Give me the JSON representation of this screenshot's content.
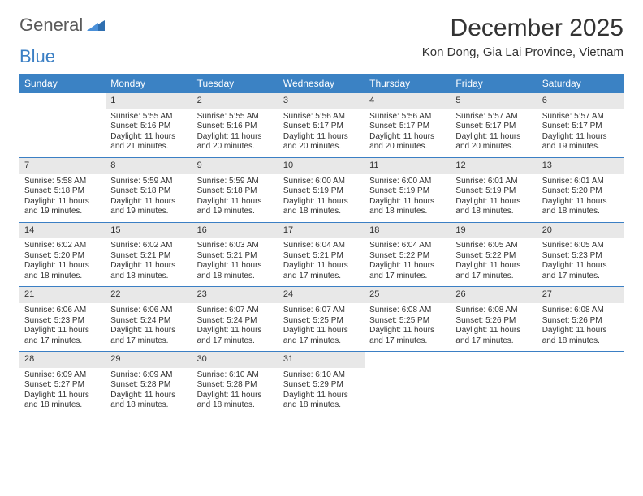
{
  "logo": {
    "text1": "General",
    "text2": "Blue"
  },
  "title": "December 2025",
  "location": "Kon Dong, Gia Lai Province, Vietnam",
  "colors": {
    "header_bg": "#3b82c4",
    "header_text": "#ffffff",
    "daynum_bg": "#e8e8e8",
    "week_border": "#3b7fc4",
    "text": "#333333",
    "logo_gray": "#5a5a5a",
    "logo_blue": "#3b7fc4"
  },
  "day_names": [
    "Sunday",
    "Monday",
    "Tuesday",
    "Wednesday",
    "Thursday",
    "Friday",
    "Saturday"
  ],
  "weeks": [
    [
      null,
      {
        "n": "1",
        "sr": "Sunrise: 5:55 AM",
        "ss": "Sunset: 5:16 PM",
        "dl": "Daylight: 11 hours and 21 minutes."
      },
      {
        "n": "2",
        "sr": "Sunrise: 5:55 AM",
        "ss": "Sunset: 5:16 PM",
        "dl": "Daylight: 11 hours and 20 minutes."
      },
      {
        "n": "3",
        "sr": "Sunrise: 5:56 AM",
        "ss": "Sunset: 5:17 PM",
        "dl": "Daylight: 11 hours and 20 minutes."
      },
      {
        "n": "4",
        "sr": "Sunrise: 5:56 AM",
        "ss": "Sunset: 5:17 PM",
        "dl": "Daylight: 11 hours and 20 minutes."
      },
      {
        "n": "5",
        "sr": "Sunrise: 5:57 AM",
        "ss": "Sunset: 5:17 PM",
        "dl": "Daylight: 11 hours and 20 minutes."
      },
      {
        "n": "6",
        "sr": "Sunrise: 5:57 AM",
        "ss": "Sunset: 5:17 PM",
        "dl": "Daylight: 11 hours and 19 minutes."
      }
    ],
    [
      {
        "n": "7",
        "sr": "Sunrise: 5:58 AM",
        "ss": "Sunset: 5:18 PM",
        "dl": "Daylight: 11 hours and 19 minutes."
      },
      {
        "n": "8",
        "sr": "Sunrise: 5:59 AM",
        "ss": "Sunset: 5:18 PM",
        "dl": "Daylight: 11 hours and 19 minutes."
      },
      {
        "n": "9",
        "sr": "Sunrise: 5:59 AM",
        "ss": "Sunset: 5:18 PM",
        "dl": "Daylight: 11 hours and 19 minutes."
      },
      {
        "n": "10",
        "sr": "Sunrise: 6:00 AM",
        "ss": "Sunset: 5:19 PM",
        "dl": "Daylight: 11 hours and 18 minutes."
      },
      {
        "n": "11",
        "sr": "Sunrise: 6:00 AM",
        "ss": "Sunset: 5:19 PM",
        "dl": "Daylight: 11 hours and 18 minutes."
      },
      {
        "n": "12",
        "sr": "Sunrise: 6:01 AM",
        "ss": "Sunset: 5:19 PM",
        "dl": "Daylight: 11 hours and 18 minutes."
      },
      {
        "n": "13",
        "sr": "Sunrise: 6:01 AM",
        "ss": "Sunset: 5:20 PM",
        "dl": "Daylight: 11 hours and 18 minutes."
      }
    ],
    [
      {
        "n": "14",
        "sr": "Sunrise: 6:02 AM",
        "ss": "Sunset: 5:20 PM",
        "dl": "Daylight: 11 hours and 18 minutes."
      },
      {
        "n": "15",
        "sr": "Sunrise: 6:02 AM",
        "ss": "Sunset: 5:21 PM",
        "dl": "Daylight: 11 hours and 18 minutes."
      },
      {
        "n": "16",
        "sr": "Sunrise: 6:03 AM",
        "ss": "Sunset: 5:21 PM",
        "dl": "Daylight: 11 hours and 18 minutes."
      },
      {
        "n": "17",
        "sr": "Sunrise: 6:04 AM",
        "ss": "Sunset: 5:21 PM",
        "dl": "Daylight: 11 hours and 17 minutes."
      },
      {
        "n": "18",
        "sr": "Sunrise: 6:04 AM",
        "ss": "Sunset: 5:22 PM",
        "dl": "Daylight: 11 hours and 17 minutes."
      },
      {
        "n": "19",
        "sr": "Sunrise: 6:05 AM",
        "ss": "Sunset: 5:22 PM",
        "dl": "Daylight: 11 hours and 17 minutes."
      },
      {
        "n": "20",
        "sr": "Sunrise: 6:05 AM",
        "ss": "Sunset: 5:23 PM",
        "dl": "Daylight: 11 hours and 17 minutes."
      }
    ],
    [
      {
        "n": "21",
        "sr": "Sunrise: 6:06 AM",
        "ss": "Sunset: 5:23 PM",
        "dl": "Daylight: 11 hours and 17 minutes."
      },
      {
        "n": "22",
        "sr": "Sunrise: 6:06 AM",
        "ss": "Sunset: 5:24 PM",
        "dl": "Daylight: 11 hours and 17 minutes."
      },
      {
        "n": "23",
        "sr": "Sunrise: 6:07 AM",
        "ss": "Sunset: 5:24 PM",
        "dl": "Daylight: 11 hours and 17 minutes."
      },
      {
        "n": "24",
        "sr": "Sunrise: 6:07 AM",
        "ss": "Sunset: 5:25 PM",
        "dl": "Daylight: 11 hours and 17 minutes."
      },
      {
        "n": "25",
        "sr": "Sunrise: 6:08 AM",
        "ss": "Sunset: 5:25 PM",
        "dl": "Daylight: 11 hours and 17 minutes."
      },
      {
        "n": "26",
        "sr": "Sunrise: 6:08 AM",
        "ss": "Sunset: 5:26 PM",
        "dl": "Daylight: 11 hours and 17 minutes."
      },
      {
        "n": "27",
        "sr": "Sunrise: 6:08 AM",
        "ss": "Sunset: 5:26 PM",
        "dl": "Daylight: 11 hours and 18 minutes."
      }
    ],
    [
      {
        "n": "28",
        "sr": "Sunrise: 6:09 AM",
        "ss": "Sunset: 5:27 PM",
        "dl": "Daylight: 11 hours and 18 minutes."
      },
      {
        "n": "29",
        "sr": "Sunrise: 6:09 AM",
        "ss": "Sunset: 5:28 PM",
        "dl": "Daylight: 11 hours and 18 minutes."
      },
      {
        "n": "30",
        "sr": "Sunrise: 6:10 AM",
        "ss": "Sunset: 5:28 PM",
        "dl": "Daylight: 11 hours and 18 minutes."
      },
      {
        "n": "31",
        "sr": "Sunrise: 6:10 AM",
        "ss": "Sunset: 5:29 PM",
        "dl": "Daylight: 11 hours and 18 minutes."
      },
      null,
      null,
      null
    ]
  ]
}
